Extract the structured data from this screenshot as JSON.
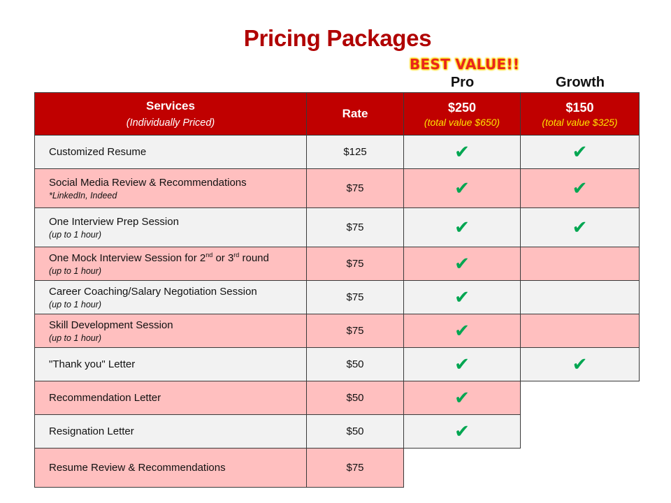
{
  "title": "Pricing Packages",
  "best_value_label": "BEST VALUE!!",
  "plans": [
    {
      "name": "Pro",
      "price": "$250",
      "total": "(total value $650)"
    },
    {
      "name": "Growth",
      "price": "$150",
      "total": "(total value $325)"
    }
  ],
  "header": {
    "services": "Services",
    "services_sub": "(Individually Priced)",
    "rate": "Rate"
  },
  "check_glyph": "✔",
  "colors": {
    "header_red": "#c00000",
    "title_red": "#b00000",
    "row_pink": "#ffbfbf",
    "row_light": "#f2f2f2",
    "check_green": "#00a651",
    "total_yellow": "#ffe600"
  },
  "rows": [
    {
      "name": "Customized Resume",
      "note": "",
      "rate": "$125",
      "pro": true,
      "growth": true
    },
    {
      "name": "Social Media Review & Recommendations",
      "note": "*LinkedIn, Indeed",
      "rate": "$75",
      "pro": true,
      "growth": true
    },
    {
      "name": "One Interview Prep Session",
      "note": "(up to 1 hour)",
      "rate": "$75",
      "pro": true,
      "growth": true
    },
    {
      "name_parts": [
        "One Mock Interview Session for 2",
        "nd",
        " or 3",
        "rd",
        " round"
      ],
      "note": "(up to 1 hour)",
      "rate": "$75",
      "pro": true,
      "growth": false
    },
    {
      "name": "Career Coaching/Salary Negotiation Session",
      "note": "(up to 1 hour)",
      "rate": "$75",
      "pro": true,
      "growth": false
    },
    {
      "name": "Skill Development Session",
      "note": "(up to 1 hour)",
      "rate": "$75",
      "pro": true,
      "growth": false
    },
    {
      "name": "\"Thank you\" Letter",
      "note": "",
      "rate": "$50",
      "pro": true,
      "growth": true
    },
    {
      "name": "Recommendation Letter",
      "note": "",
      "rate": "$50",
      "pro": true
    },
    {
      "name": "Resignation Letter",
      "note": "",
      "rate": "$50",
      "pro": true
    },
    {
      "name": "Resume Review & Recommendations",
      "note": "",
      "rate": "$75"
    }
  ]
}
